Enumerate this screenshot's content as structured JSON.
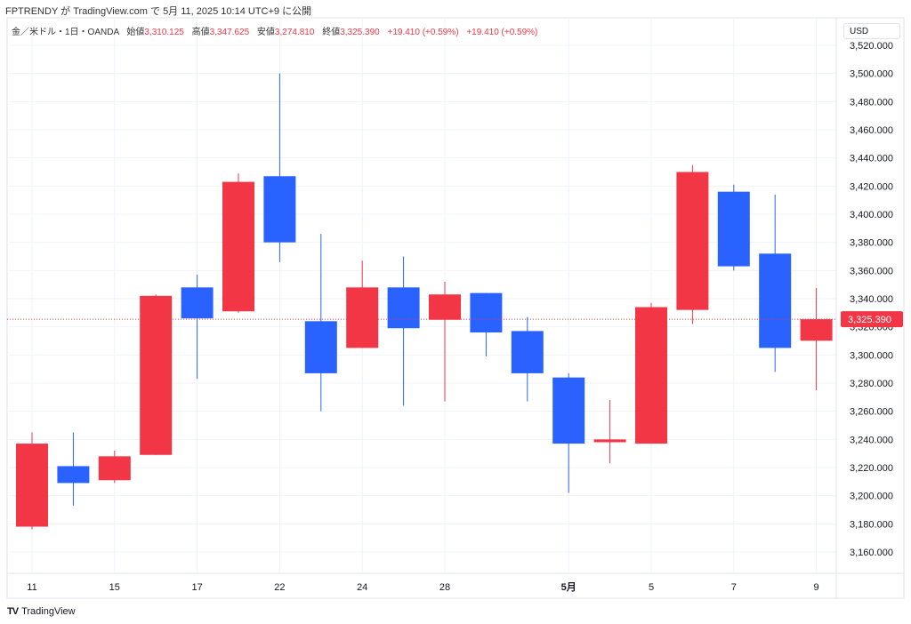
{
  "published": "FPTRENDY が TradingView.com で 5月 11, 2025 10:14 UTC+9 に公開",
  "legend": {
    "symbol": "金／米ドル・1日・OANDA",
    "open_label": "始値",
    "open": "3,310.125",
    "high_label": "高値",
    "high": "3,347.625",
    "low_label": "安値",
    "low": "3,274.810",
    "close_label": "終値",
    "close": "3,325.390",
    "change1": "+19.410 (+0.59%)",
    "change2": "+19.410 (+0.59%)"
  },
  "currency": "USD",
  "footer": {
    "logo": "TradingView",
    "brand": "TradingView"
  },
  "colors": {
    "up": "#f23645",
    "down": "#2962ff",
    "grid": "#f0f3fa"
  },
  "chart_data": {
    "type": "candlestick",
    "title": "金／米ドル・1日・OANDA",
    "ylim": [
      3150,
      3530
    ],
    "yticks": [
      3160,
      3180,
      3200,
      3220,
      3240,
      3260,
      3280,
      3300,
      3320,
      3340,
      3360,
      3380,
      3400,
      3420,
      3440,
      3460,
      3480,
      3500,
      3520
    ],
    "ytick_labels": [
      "3,160.000",
      "3,180.000",
      "3,200.000",
      "3,220.000",
      "3,240.000",
      "3,260.000",
      "3,280.000",
      "3,300.000",
      "3,320.000",
      "3,340.000",
      "3,360.000",
      "3,380.000",
      "3,400.000",
      "3,420.000",
      "3,440.000",
      "3,460.000",
      "3,480.000",
      "3,500.000",
      "3,520.000"
    ],
    "xticks": [
      {
        "index": 0,
        "label": "11"
      },
      {
        "index": 2,
        "label": "15"
      },
      {
        "index": 4,
        "label": "17"
      },
      {
        "index": 6,
        "label": "22"
      },
      {
        "index": 8,
        "label": "24"
      },
      {
        "index": 10,
        "label": "28"
      },
      {
        "index": 13,
        "label": "5月",
        "bold": true
      },
      {
        "index": 15,
        "label": "5"
      },
      {
        "index": 17,
        "label": "7"
      },
      {
        "index": 19,
        "label": "9"
      }
    ],
    "last_price": 3325.39,
    "last_price_label": "3,325.390",
    "candles": [
      {
        "o": 3178,
        "h": 3245,
        "l": 3176,
        "c": 3237
      },
      {
        "o": 3221,
        "h": 3245,
        "l": 3193,
        "c": 3209
      },
      {
        "o": 3211,
        "h": 3232,
        "l": 3209,
        "c": 3228
      },
      {
        "o": 3229,
        "h": 3343,
        "l": 3229,
        "c": 3342
      },
      {
        "o": 3348,
        "h": 3357,
        "l": 3283,
        "c": 3326
      },
      {
        "o": 3331,
        "h": 3429,
        "l": 3330,
        "c": 3423
      },
      {
        "o": 3427,
        "h": 3500,
        "l": 3366,
        "c": 3380
      },
      {
        "o": 3324,
        "h": 3386,
        "l": 3260,
        "c": 3287
      },
      {
        "o": 3305,
        "h": 3367,
        "l": 3305,
        "c": 3348
      },
      {
        "o": 3348,
        "h": 3370,
        "l": 3264,
        "c": 3319
      },
      {
        "o": 3325,
        "h": 3352,
        "l": 3267,
        "c": 3343
      },
      {
        "o": 3344,
        "h": 3344,
        "l": 3299,
        "c": 3316
      },
      {
        "o": 3317,
        "h": 3327,
        "l": 3267,
        "c": 3287
      },
      {
        "o": 3284,
        "h": 3287,
        "l": 3202,
        "c": 3237
      },
      {
        "o": 3238,
        "h": 3268,
        "l": 3223,
        "c": 3240
      },
      {
        "o": 3237,
        "h": 3337,
        "l": 3237,
        "c": 3334
      },
      {
        "o": 3332,
        "h": 3435,
        "l": 3322,
        "c": 3430
      },
      {
        "o": 3416,
        "h": 3421,
        "l": 3360,
        "c": 3363
      },
      {
        "o": 3372,
        "h": 3414,
        "l": 3288,
        "c": 3305
      },
      {
        "o": 3310.125,
        "h": 3347.625,
        "l": 3274.81,
        "c": 3325.39
      }
    ]
  }
}
